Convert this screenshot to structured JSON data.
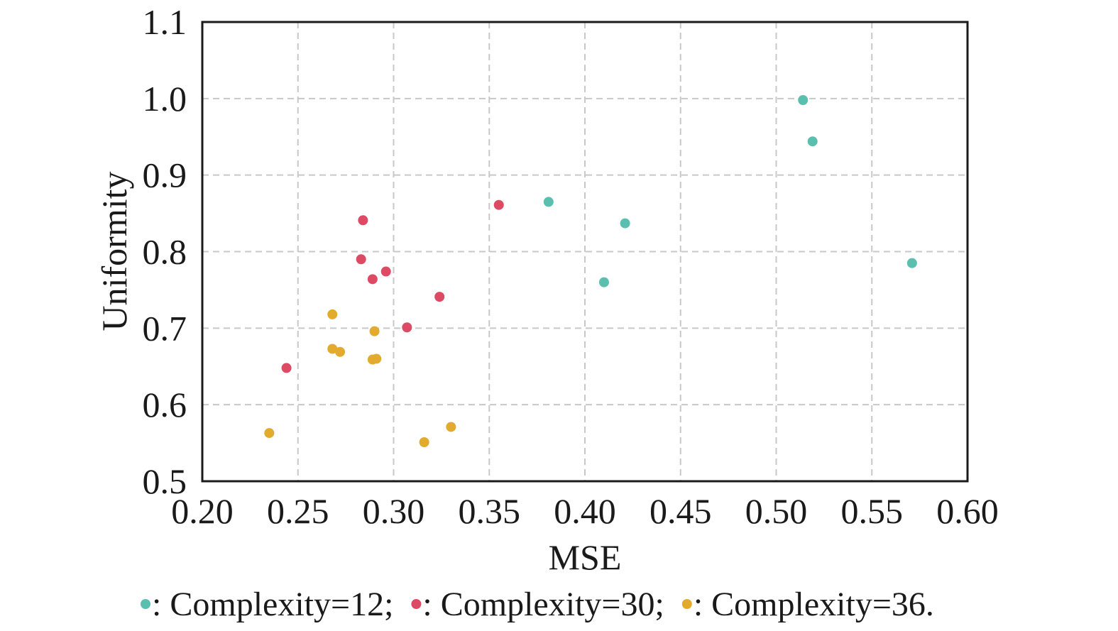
{
  "chart_data": {
    "type": "scatter",
    "xlabel": "MSE",
    "ylabel": "Uniformity",
    "xlim": [
      0.2,
      0.6
    ],
    "ylim": [
      0.5,
      1.1
    ],
    "xticks": [
      "0.20",
      "0.25",
      "0.30",
      "0.35",
      "0.40",
      "0.45",
      "0.50",
      "0.55",
      "0.60"
    ],
    "yticks": [
      "0.5",
      "0.6",
      "0.7",
      "0.8",
      "0.9",
      "1.0",
      "1.1"
    ],
    "grid": true,
    "legend_position": "bottom",
    "series": [
      {
        "name": ": Complexity=12;",
        "color": "#5bbfb0",
        "points": [
          [
            0.514,
            0.998
          ],
          [
            0.519,
            0.944
          ],
          [
            0.381,
            0.865
          ],
          [
            0.421,
            0.837
          ],
          [
            0.41,
            0.76
          ],
          [
            0.571,
            0.785
          ]
        ]
      },
      {
        "name": ": Complexity=30;",
        "color": "#dc4a64",
        "points": [
          [
            0.355,
            0.861
          ],
          [
            0.284,
            0.841
          ],
          [
            0.283,
            0.79
          ],
          [
            0.296,
            0.774
          ],
          [
            0.289,
            0.764
          ],
          [
            0.324,
            0.741
          ],
          [
            0.307,
            0.701
          ],
          [
            0.244,
            0.648
          ]
        ]
      },
      {
        "name": ": Complexity=36.",
        "color": "#e3ab2e",
        "points": [
          [
            0.268,
            0.718
          ],
          [
            0.29,
            0.696
          ],
          [
            0.268,
            0.673
          ],
          [
            0.272,
            0.669
          ],
          [
            0.289,
            0.659
          ],
          [
            0.291,
            0.66
          ],
          [
            0.235,
            0.563
          ],
          [
            0.33,
            0.571
          ],
          [
            0.316,
            0.551
          ]
        ]
      }
    ]
  }
}
